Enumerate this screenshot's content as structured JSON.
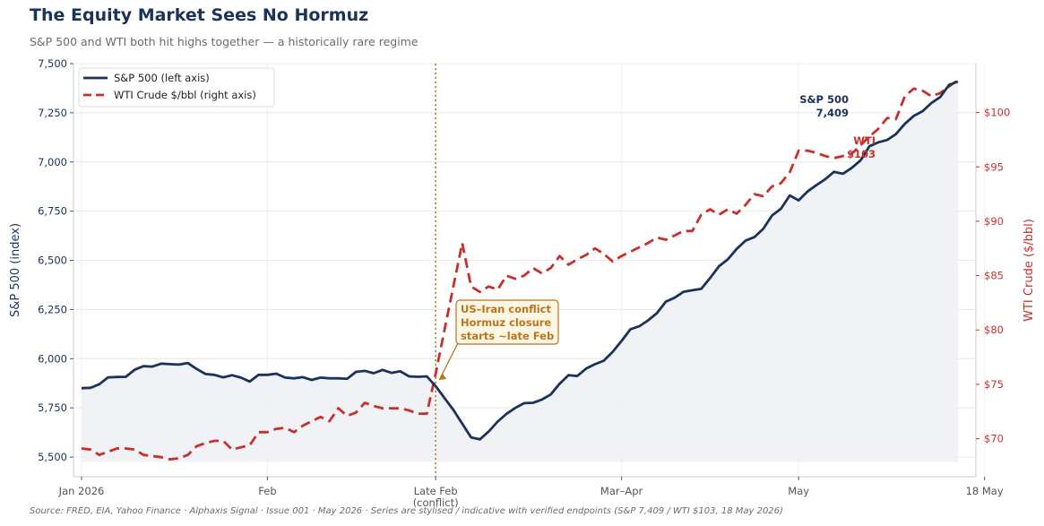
{
  "header": {
    "title": "The Equity Market Sees No Hormuz",
    "subtitle": "S&P 500 and WTI both hit highs together — a historically rare regime"
  },
  "footer": {
    "source": "Source: FRED, EIA, Yahoo Finance · Alphaxis Signal · Issue 001 · May 2026   ·   Series are stylised / indicative with verified endpoints (S&P 7,409 / WTI $103, 18 May 2026)"
  },
  "colors": {
    "spx": "#1b3358",
    "wti": "#c8302e",
    "annotation": "#b8761e",
    "annotation_fill": "#fdf6e3",
    "grid": "#e8e8e8"
  },
  "chart_data": {
    "type": "line",
    "x_tick_labels": [
      "Jan 2026",
      "Feb",
      "Late Feb\n(conflict)",
      "Mar–Apr",
      "May",
      "18 May"
    ],
    "x_tick_positions": [
      0,
      21,
      40,
      61,
      81,
      102
    ],
    "ylabel_left": "S&P 500 (index)",
    "ylabel_right": "WTI Crude ($/bbl)",
    "ylim_left": [
      5400,
      7500
    ],
    "yticks_left": [
      "5,500",
      "5,750",
      "6,000",
      "6,250",
      "6,500",
      "6,750",
      "7,000",
      "7,250",
      "7,500"
    ],
    "ytick_values_left": [
      5500,
      5750,
      6000,
      6250,
      6500,
      6750,
      7000,
      7250,
      7500
    ],
    "ylim_right": [
      66.5,
      104.5
    ],
    "yticks_right": [
      "$70",
      "$75",
      "$80",
      "$85",
      "$90",
      "$95",
      "$100"
    ],
    "ytick_values_right": [
      70,
      75,
      80,
      85,
      90,
      95,
      100
    ],
    "conflict_x": 40,
    "legend": {
      "placement": "top-left",
      "entries": [
        "S&P 500 (left axis)",
        "WTI Crude $/bbl (right axis)"
      ]
    },
    "annotation": {
      "text": [
        "US–Iran conflict",
        "Hormuz closure",
        "starts ~late Feb"
      ],
      "x": 40,
      "y": 5910
    },
    "end_labels": {
      "spx": [
        "S&P 500",
        "7,409"
      ],
      "wti": [
        "WTI",
        "$103"
      ]
    },
    "series": [
      {
        "name": "S&P 500 (left axis)",
        "axis": "left",
        "values": [
          5850,
          5852,
          5870,
          5905,
          5907,
          5908,
          5944,
          5962,
          5960,
          5975,
          5972,
          5970,
          5978,
          5948,
          5922,
          5918,
          5905,
          5916,
          5904,
          5884,
          5918,
          5918,
          5924,
          5904,
          5900,
          5906,
          5892,
          5904,
          5900,
          5900,
          5898,
          5933,
          5938,
          5926,
          5943,
          5928,
          5936,
          5910,
          5908,
          5910,
          5860,
          5800,
          5740,
          5670,
          5600,
          5590,
          5630,
          5680,
          5720,
          5750,
          5774,
          5776,
          5792,
          5818,
          5873,
          5916,
          5912,
          5950,
          5972,
          5990,
          6035,
          6090,
          6150,
          6165,
          6195,
          6232,
          6290,
          6310,
          6340,
          6348,
          6355,
          6410,
          6470,
          6505,
          6558,
          6600,
          6618,
          6660,
          6728,
          6762,
          6830,
          6805,
          6850,
          6882,
          6912,
          6950,
          6940,
          6970,
          7008,
          7080,
          7100,
          7112,
          7142,
          7194,
          7234,
          7258,
          7300,
          7330,
          7392,
          7409
        ]
      },
      {
        "name": "WTI Crude $/bbl (right axis)",
        "axis": "right",
        "values": [
          69.1,
          69.0,
          68.5,
          68.8,
          69.1,
          69.1,
          69.0,
          68.5,
          68.4,
          68.3,
          68.1,
          68.2,
          68.5,
          69.3,
          69.6,
          69.8,
          69.8,
          69.0,
          69.2,
          69.4,
          70.6,
          70.6,
          70.9,
          71.0,
          70.6,
          71.2,
          71.6,
          72.0,
          71.6,
          72.8,
          72.1,
          72.4,
          73.3,
          73.0,
          72.8,
          72.8,
          72.8,
          72.6,
          72.3,
          72.3,
          76.0,
          80.0,
          84.0,
          88.0,
          84.0,
          83.5,
          84.0,
          83.7,
          85.0,
          84.7,
          85.0,
          85.7,
          85.2,
          85.7,
          86.8,
          86.0,
          86.5,
          86.9,
          87.5,
          87.0,
          86.3,
          86.8,
          87.2,
          87.6,
          88.0,
          88.5,
          88.3,
          88.7,
          89.1,
          89.1,
          90.6,
          91.1,
          90.6,
          91.1,
          90.7,
          91.5,
          92.5,
          92.3,
          93.2,
          93.5,
          94.5,
          96.5,
          96.5,
          96.3,
          96.0,
          95.8,
          96.0,
          96.2,
          97.0,
          97.8,
          98.5,
          99.5,
          99.4,
          101.5,
          102.2,
          102.0,
          101.5,
          101.8,
          102.4,
          103.0
        ]
      }
    ]
  }
}
